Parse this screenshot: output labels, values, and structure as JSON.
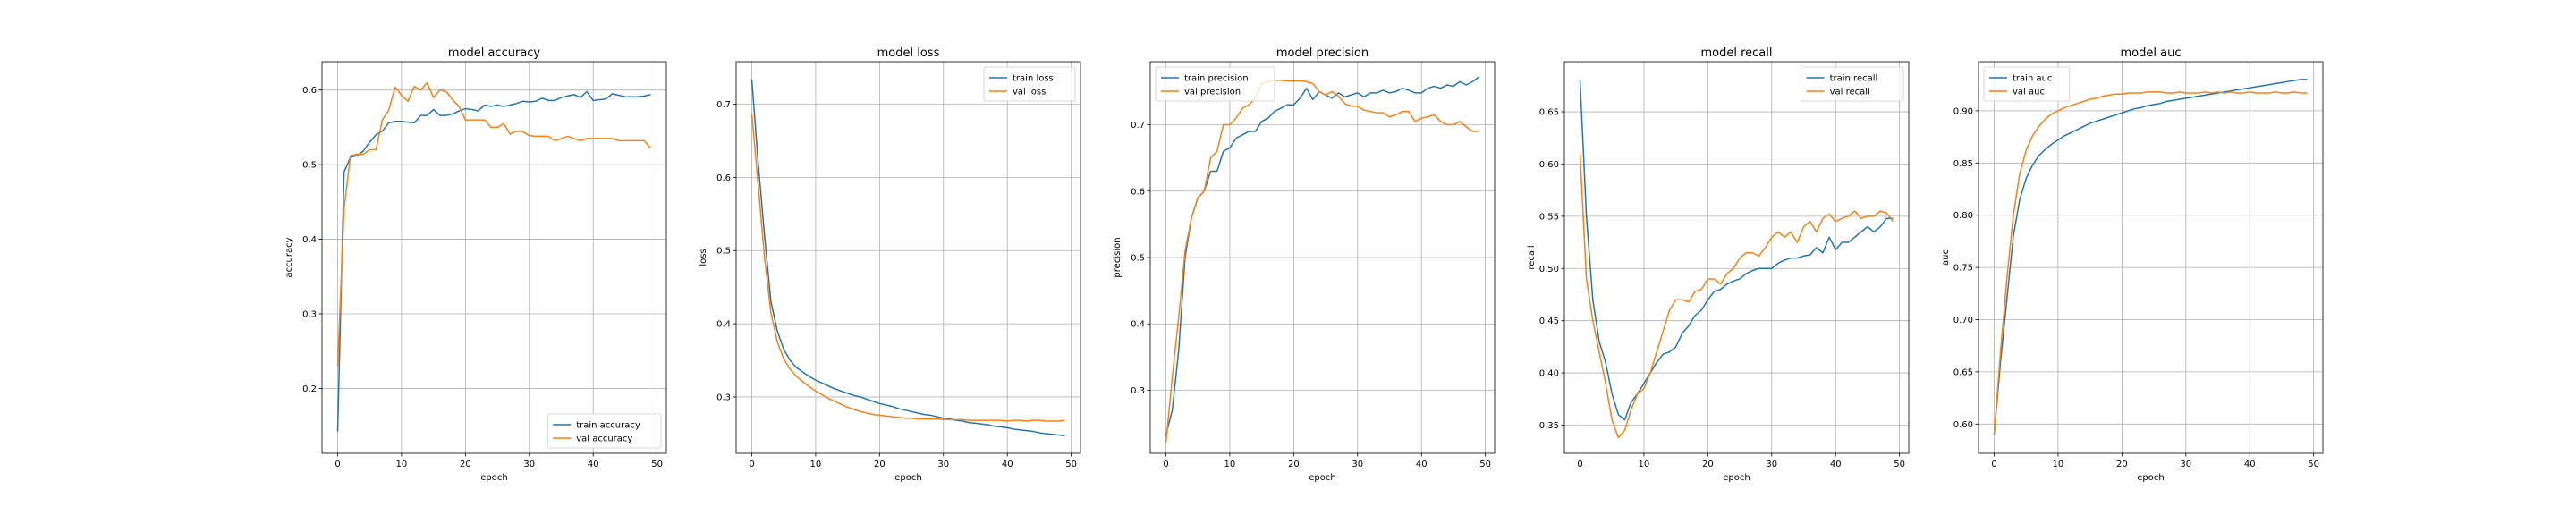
{
  "colors": {
    "train": "#1f77b4",
    "val": "#ff7f0e"
  },
  "chart_data": [
    {
      "type": "line",
      "title": "model accuracy",
      "xlabel": "epoch",
      "ylabel": "accuracy",
      "xlim": [
        -2.45,
        51.45
      ],
      "ylim": [
        0.113,
        0.638
      ],
      "xticks": [
        0,
        10,
        20,
        30,
        40,
        50
      ],
      "yticks": [
        0.2,
        0.3,
        0.4,
        0.5,
        0.6
      ],
      "ytick_labels": [
        "0.2",
        "0.3",
        "0.4",
        "0.5",
        "0.6"
      ],
      "grid": true,
      "legend": "lower-right",
      "x": [
        0,
        1,
        2,
        3,
        4,
        5,
        6,
        7,
        8,
        9,
        10,
        11,
        12,
        13,
        14,
        15,
        16,
        17,
        18,
        19,
        20,
        21,
        22,
        23,
        24,
        25,
        26,
        27,
        28,
        29,
        30,
        31,
        32,
        33,
        34,
        35,
        36,
        37,
        38,
        39,
        40,
        41,
        42,
        43,
        44,
        45,
        46,
        47,
        48,
        49
      ],
      "series": [
        {
          "name": "train accuracy",
          "color_key": "train",
          "values": [
            0.142,
            0.49,
            0.51,
            0.512,
            0.518,
            0.53,
            0.54,
            0.545,
            0.556,
            0.558,
            0.558,
            0.557,
            0.556,
            0.566,
            0.566,
            0.574,
            0.566,
            0.566,
            0.568,
            0.572,
            0.575,
            0.574,
            0.572,
            0.58,
            0.578,
            0.58,
            0.578,
            0.58,
            0.582,
            0.585,
            0.584,
            0.585,
            0.589,
            0.586,
            0.586,
            0.59,
            0.592,
            0.594,
            0.59,
            0.598,
            0.586,
            0.587,
            0.588,
            0.595,
            0.593,
            0.591,
            0.591,
            0.591,
            0.592,
            0.594
          ]
        },
        {
          "name": "val accuracy",
          "color_key": "val",
          "values": [
            0.23,
            0.44,
            0.512,
            0.514,
            0.514,
            0.52,
            0.52,
            0.56,
            0.573,
            0.604,
            0.593,
            0.585,
            0.605,
            0.6,
            0.61,
            0.59,
            0.6,
            0.598,
            0.587,
            0.578,
            0.56,
            0.56,
            0.56,
            0.56,
            0.55,
            0.55,
            0.555,
            0.541,
            0.545,
            0.544,
            0.539,
            0.538,
            0.538,
            0.538,
            0.532,
            0.535,
            0.538,
            0.535,
            0.532,
            0.535,
            0.535,
            0.535,
            0.535,
            0.535,
            0.532,
            0.532,
            0.532,
            0.532,
            0.532,
            0.522
          ]
        }
      ]
    },
    {
      "type": "line",
      "title": "model loss",
      "xlabel": "epoch",
      "ylabel": "loss",
      "xlim": [
        -2.45,
        51.45
      ],
      "ylim": [
        0.223,
        0.758
      ],
      "xticks": [
        0,
        10,
        20,
        30,
        40,
        50
      ],
      "yticks": [
        0.3,
        0.4,
        0.5,
        0.6,
        0.7
      ],
      "ytick_labels": [
        "0.3",
        "0.4",
        "0.5",
        "0.6",
        "0.7"
      ],
      "grid": true,
      "legend": "upper-right",
      "x": [
        0,
        1,
        2,
        3,
        4,
        5,
        6,
        7,
        8,
        9,
        10,
        11,
        12,
        13,
        14,
        15,
        16,
        17,
        18,
        19,
        20,
        21,
        22,
        23,
        24,
        25,
        26,
        27,
        28,
        29,
        30,
        31,
        32,
        33,
        34,
        35,
        36,
        37,
        38,
        39,
        40,
        41,
        42,
        43,
        44,
        45,
        46,
        47,
        48,
        49
      ],
      "series": [
        {
          "name": "train loss",
          "color_key": "train",
          "values": [
            0.734,
            0.62,
            0.52,
            0.43,
            0.39,
            0.365,
            0.35,
            0.34,
            0.334,
            0.328,
            0.323,
            0.319,
            0.315,
            0.311,
            0.308,
            0.305,
            0.302,
            0.3,
            0.297,
            0.294,
            0.291,
            0.289,
            0.287,
            0.284,
            0.282,
            0.28,
            0.278,
            0.276,
            0.275,
            0.273,
            0.271,
            0.27,
            0.268,
            0.267,
            0.265,
            0.264,
            0.263,
            0.262,
            0.26,
            0.259,
            0.258,
            0.256,
            0.255,
            0.254,
            0.253,
            0.251,
            0.25,
            0.249,
            0.248,
            0.247
          ]
        },
        {
          "name": "val loss",
          "color_key": "val",
          "values": [
            0.687,
            0.59,
            0.49,
            0.415,
            0.375,
            0.352,
            0.338,
            0.328,
            0.321,
            0.314,
            0.308,
            0.303,
            0.298,
            0.294,
            0.29,
            0.286,
            0.283,
            0.28,
            0.278,
            0.276,
            0.275,
            0.274,
            0.273,
            0.272,
            0.271,
            0.271,
            0.27,
            0.27,
            0.27,
            0.27,
            0.269,
            0.269,
            0.269,
            0.269,
            0.268,
            0.268,
            0.268,
            0.268,
            0.268,
            0.268,
            0.267,
            0.268,
            0.268,
            0.267,
            0.268,
            0.268,
            0.267,
            0.267,
            0.267,
            0.268
          ]
        }
      ]
    },
    {
      "type": "line",
      "title": "model precision",
      "xlabel": "epoch",
      "ylabel": "precision",
      "xlim": [
        -2.45,
        51.45
      ],
      "ylim": [
        0.205,
        0.795
      ],
      "xticks": [
        0,
        10,
        20,
        30,
        40,
        50
      ],
      "yticks": [
        0.3,
        0.4,
        0.5,
        0.6,
        0.7
      ],
      "ytick_labels": [
        "0.3",
        "0.4",
        "0.5",
        "0.6",
        "0.7"
      ],
      "grid": true,
      "legend": "upper-left",
      "x": [
        0,
        1,
        2,
        3,
        4,
        5,
        6,
        7,
        8,
        9,
        10,
        11,
        12,
        13,
        14,
        15,
        16,
        17,
        18,
        19,
        20,
        21,
        22,
        23,
        24,
        25,
        26,
        27,
        28,
        29,
        30,
        31,
        32,
        33,
        34,
        35,
        36,
        37,
        38,
        39,
        40,
        41,
        42,
        43,
        44,
        45,
        46,
        47,
        48,
        49
      ],
      "series": [
        {
          "name": "train precision",
          "color_key": "train",
          "values": [
            0.232,
            0.27,
            0.36,
            0.5,
            0.56,
            0.59,
            0.6,
            0.63,
            0.63,
            0.66,
            0.665,
            0.68,
            0.685,
            0.69,
            0.69,
            0.705,
            0.71,
            0.72,
            0.725,
            0.73,
            0.73,
            0.74,
            0.755,
            0.738,
            0.75,
            0.745,
            0.74,
            0.748,
            0.742,
            0.745,
            0.748,
            0.742,
            0.748,
            0.748,
            0.752,
            0.748,
            0.75,
            0.755,
            0.752,
            0.748,
            0.748,
            0.755,
            0.758,
            0.755,
            0.76,
            0.758,
            0.765,
            0.76,
            0.765,
            0.772
          ]
        },
        {
          "name": "val precision",
          "color_key": "val",
          "values": [
            0.22,
            0.32,
            0.41,
            0.51,
            0.56,
            0.59,
            0.6,
            0.65,
            0.66,
            0.7,
            0.7,
            0.71,
            0.725,
            0.73,
            0.74,
            0.762,
            0.765,
            0.767,
            0.767,
            0.766,
            0.766,
            0.766,
            0.765,
            0.762,
            0.75,
            0.745,
            0.75,
            0.743,
            0.732,
            0.728,
            0.728,
            0.722,
            0.72,
            0.718,
            0.718,
            0.712,
            0.715,
            0.72,
            0.72,
            0.705,
            0.71,
            0.712,
            0.715,
            0.705,
            0.7,
            0.7,
            0.705,
            0.697,
            0.69,
            0.69
          ]
        }
      ]
    },
    {
      "type": "line",
      "title": "model recall",
      "xlabel": "epoch",
      "ylabel": "recall",
      "xlim": [
        -2.45,
        51.45
      ],
      "ylim": [
        0.323,
        0.698
      ],
      "xticks": [
        0,
        10,
        20,
        30,
        40,
        50
      ],
      "yticks": [
        0.35,
        0.4,
        0.45,
        0.5,
        0.55,
        0.6,
        0.65
      ],
      "ytick_labels": [
        "0.35",
        "0.40",
        "0.45",
        "0.50",
        "0.55",
        "0.60",
        "0.65"
      ],
      "grid": true,
      "legend": "upper-right",
      "x": [
        0,
        1,
        2,
        3,
        4,
        5,
        6,
        7,
        8,
        9,
        10,
        11,
        12,
        13,
        14,
        15,
        16,
        17,
        18,
        19,
        20,
        21,
        22,
        23,
        24,
        25,
        26,
        27,
        28,
        29,
        30,
        31,
        32,
        33,
        34,
        35,
        36,
        37,
        38,
        39,
        40,
        41,
        42,
        43,
        44,
        45,
        46,
        47,
        48,
        49
      ],
      "series": [
        {
          "name": "train recall",
          "color_key": "train",
          "values": [
            0.68,
            0.55,
            0.47,
            0.43,
            0.41,
            0.38,
            0.36,
            0.355,
            0.372,
            0.38,
            0.39,
            0.4,
            0.41,
            0.418,
            0.42,
            0.425,
            0.438,
            0.445,
            0.455,
            0.46,
            0.47,
            0.478,
            0.48,
            0.485,
            0.488,
            0.49,
            0.495,
            0.498,
            0.5,
            0.5,
            0.5,
            0.505,
            0.508,
            0.51,
            0.51,
            0.512,
            0.513,
            0.52,
            0.515,
            0.53,
            0.518,
            0.525,
            0.525,
            0.53,
            0.535,
            0.54,
            0.535,
            0.54,
            0.548,
            0.548
          ]
        },
        {
          "name": "val recall",
          "color_key": "val",
          "values": [
            0.61,
            0.49,
            0.45,
            0.42,
            0.39,
            0.355,
            0.338,
            0.345,
            0.365,
            0.38,
            0.385,
            0.4,
            0.42,
            0.44,
            0.46,
            0.47,
            0.47,
            0.468,
            0.478,
            0.48,
            0.49,
            0.49,
            0.485,
            0.495,
            0.5,
            0.51,
            0.515,
            0.515,
            0.512,
            0.52,
            0.53,
            0.535,
            0.53,
            0.535,
            0.525,
            0.54,
            0.545,
            0.535,
            0.548,
            0.552,
            0.545,
            0.548,
            0.55,
            0.555,
            0.548,
            0.55,
            0.55,
            0.555,
            0.553,
            0.545
          ]
        }
      ]
    },
    {
      "type": "line",
      "title": "model auc",
      "xlabel": "epoch",
      "ylabel": "auc",
      "xlim": [
        -2.45,
        51.45
      ],
      "ylim": [
        0.572,
        0.947
      ],
      "xticks": [
        0,
        10,
        20,
        30,
        40,
        50
      ],
      "yticks": [
        0.6,
        0.65,
        0.7,
        0.75,
        0.8,
        0.85,
        0.9
      ],
      "ytick_labels": [
        "0.60",
        "0.65",
        "0.70",
        "0.75",
        "0.80",
        "0.85",
        "0.90"
      ],
      "grid": true,
      "legend": "upper-left",
      "x": [
        0,
        1,
        2,
        3,
        4,
        5,
        6,
        7,
        8,
        9,
        10,
        11,
        12,
        13,
        14,
        15,
        16,
        17,
        18,
        19,
        20,
        21,
        22,
        23,
        24,
        25,
        26,
        27,
        28,
        29,
        30,
        31,
        32,
        33,
        34,
        35,
        36,
        37,
        38,
        39,
        40,
        41,
        42,
        43,
        44,
        45,
        46,
        47,
        48,
        49
      ],
      "series": [
        {
          "name": "train auc",
          "color_key": "train",
          "values": [
            0.59,
            0.66,
            0.72,
            0.78,
            0.815,
            0.835,
            0.848,
            0.857,
            0.863,
            0.868,
            0.872,
            0.876,
            0.879,
            0.882,
            0.885,
            0.888,
            0.89,
            0.892,
            0.894,
            0.896,
            0.898,
            0.9,
            0.902,
            0.903,
            0.905,
            0.906,
            0.907,
            0.909,
            0.91,
            0.911,
            0.912,
            0.913,
            0.914,
            0.915,
            0.916,
            0.917,
            0.918,
            0.919,
            0.92,
            0.921,
            0.922,
            0.923,
            0.924,
            0.925,
            0.926,
            0.927,
            0.928,
            0.929,
            0.93,
            0.93
          ]
        },
        {
          "name": "val auc",
          "color_key": "val",
          "values": [
            0.59,
            0.67,
            0.74,
            0.8,
            0.84,
            0.862,
            0.876,
            0.885,
            0.892,
            0.897,
            0.9,
            0.903,
            0.905,
            0.907,
            0.909,
            0.911,
            0.912,
            0.914,
            0.915,
            0.916,
            0.916,
            0.917,
            0.917,
            0.917,
            0.918,
            0.918,
            0.918,
            0.917,
            0.917,
            0.918,
            0.917,
            0.917,
            0.917,
            0.918,
            0.917,
            0.918,
            0.917,
            0.918,
            0.917,
            0.917,
            0.918,
            0.917,
            0.917,
            0.917,
            0.918,
            0.917,
            0.917,
            0.918,
            0.917,
            0.917
          ]
        }
      ]
    }
  ]
}
